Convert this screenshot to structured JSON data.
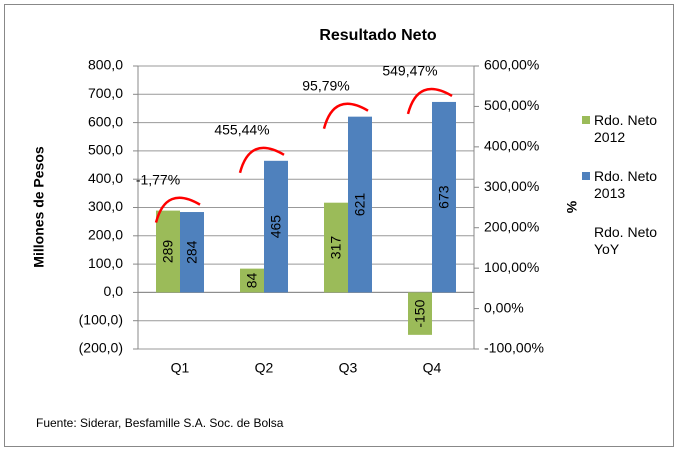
{
  "chart_data": {
    "type": "bar",
    "title": "Resultado Neto",
    "y_label": "Millones de Pesos",
    "y2_label": "%",
    "categories": [
      "Q1",
      "Q2",
      "Q3",
      "Q4"
    ],
    "series": [
      {
        "name": "Rdo. Neto 2012",
        "color": "#9bbb59",
        "values": [
          289,
          84,
          317,
          -150
        ]
      },
      {
        "name": "Rdo. Neto 2013",
        "color": "#4f81bd",
        "values": [
          284,
          465,
          621,
          673
        ]
      },
      {
        "name": "Rdo. Neto YoY",
        "type": "arc",
        "color": "#ff0000",
        "values": [
          -1.77,
          455.44,
          95.79,
          549.47
        ],
        "value_labels": [
          "-1,77%",
          "455,44%",
          "95,79%",
          "549,47%"
        ]
      }
    ],
    "ylim": [
      -200,
      800
    ],
    "yticks": [
      {
        "value": -200,
        "label": "(200,0)"
      },
      {
        "value": -100,
        "label": "(100,0)"
      },
      {
        "value": 0,
        "label": "0,0"
      },
      {
        "value": 100,
        "label": "100,0"
      },
      {
        "value": 200,
        "label": "200,0"
      },
      {
        "value": 300,
        "label": "300,0"
      },
      {
        "value": 400,
        "label": "400,0"
      },
      {
        "value": 500,
        "label": "500,0"
      },
      {
        "value": 600,
        "label": "600,0"
      },
      {
        "value": 700,
        "label": "700,0"
      },
      {
        "value": 800,
        "label": "800,0"
      }
    ],
    "y2lim": [
      -100,
      600
    ],
    "y2ticks": [
      {
        "value": -100,
        "label": "-100,00%"
      },
      {
        "value": 0,
        "label": "0,00%"
      },
      {
        "value": 100,
        "label": "100,00%"
      },
      {
        "value": 200,
        "label": "200,00%"
      },
      {
        "value": 300,
        "label": "300,00%"
      },
      {
        "value": 400,
        "label": "400,00%"
      },
      {
        "value": 500,
        "label": "500,00%"
      },
      {
        "value": 600,
        "label": "600,00%"
      }
    ],
    "grid": true,
    "legend": "right",
    "source": "Fuente: Siderar, Besfamille S.A. Soc. de Bolsa"
  }
}
